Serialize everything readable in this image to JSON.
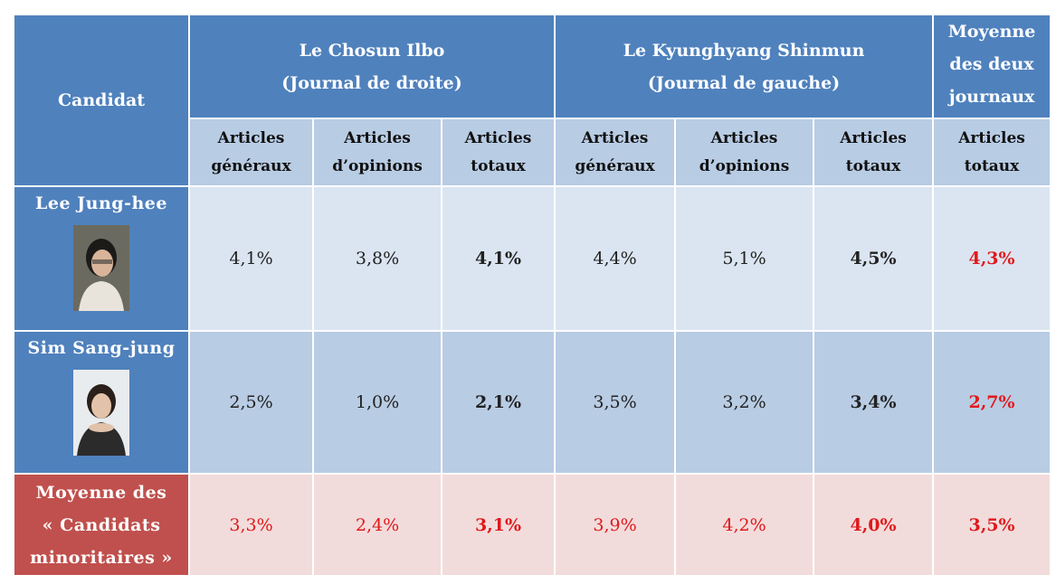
{
  "table": {
    "header": {
      "candidate": "Candidat",
      "groups": [
        [
          "Le Chosun Ilbo",
          "(Journal de droite)"
        ],
        [
          "Le Kyunghyang Shinmun",
          "(Journal de gauche)"
        ],
        [
          "Moyenne",
          "des deux",
          "journaux"
        ]
      ],
      "subheaders": [
        [
          "Articles",
          "généraux"
        ],
        [
          "Articles",
          "d’opinions"
        ],
        [
          "Articles",
          "totaux"
        ],
        [
          "Articles",
          "généraux"
        ],
        [
          "Articles",
          "d’opinions"
        ],
        [
          "Articles",
          "totaux"
        ],
        [
          "Articles",
          "totaux"
        ]
      ]
    },
    "rows": [
      {
        "name": [
          "Lee Jung-hee"
        ],
        "cells": [
          "4,1%",
          "3,8%",
          "4,1%",
          "4,4%",
          "5,1%",
          "4,5%",
          "4,3%"
        ]
      },
      {
        "name": [
          "Sim Sang-jung"
        ],
        "cells": [
          "2,5%",
          "1,0%",
          "2,1%",
          "3,5%",
          "3,2%",
          "3,4%",
          "2,7%"
        ]
      },
      {
        "name": [
          "Moyenne des",
          "« Candidats",
          "minoritaires »"
        ],
        "cells": [
          "3,3%",
          "2,4%",
          "3,1%",
          "3,9%",
          "4,2%",
          "4,0%",
          "3,5%"
        ]
      }
    ]
  }
}
